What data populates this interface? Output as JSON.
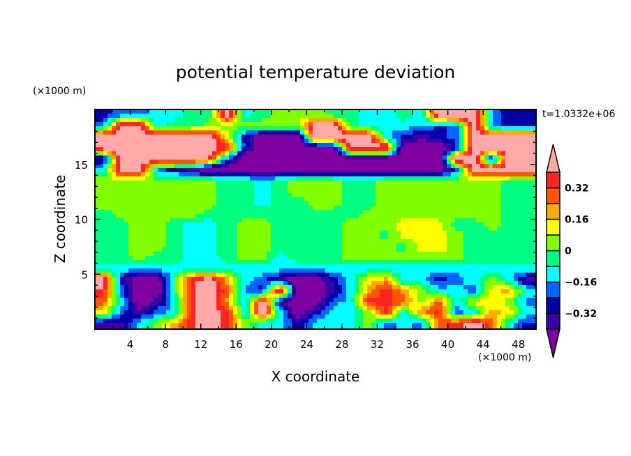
{
  "chart_data": {
    "type": "heatmap",
    "title": "potential temperature deviation",
    "xlabel": "X coordinate",
    "ylabel": "Z coordinate",
    "x_units": "(×1000 m)",
    "y_units": "(×1000 m)",
    "time_label": "t=1.0332e+06",
    "xlim": [
      0,
      50
    ],
    "ylim": [
      0,
      20
    ],
    "x_ticks": [
      4,
      8,
      12,
      16,
      20,
      24,
      28,
      32,
      36,
      40,
      44,
      48
    ],
    "y_ticks": [
      5,
      10,
      15
    ],
    "colorbar": {
      "levels": [
        -0.4,
        -0.32,
        -0.24,
        -0.16,
        -0.08,
        0,
        0.08,
        0.16,
        0.24,
        0.32,
        0.4
      ],
      "colors": [
        "#7f00a0",
        "#3b00a6",
        "#0000a8",
        "#0064ff",
        "#00ffff",
        "#00ff80",
        "#80ff00",
        "#ffff00",
        "#ffa800",
        "#ff5400",
        "#ff2424",
        "#ffa8a8"
      ],
      "tick_labels": [
        {
          "value": 0.32,
          "label": "0.32"
        },
        {
          "value": 0.16,
          "label": "0.16"
        },
        {
          "value": 0,
          "label": "0"
        },
        {
          "value": -0.16,
          "label": "−0.16"
        },
        {
          "value": -0.32,
          "label": "−0.32"
        }
      ],
      "extend": "both"
    },
    "grid_codes": {
      "U": -0.5,
      "I": -0.36,
      "D": -0.28,
      "B": -0.2,
      "C": -0.12,
      "S": -0.04,
      "G": 0.04,
      "Y": 0.12,
      "A": 0.2,
      "O": 0.28,
      "R": 0.36,
      "P": 0.5
    },
    "grid_x_centers": [
      1,
      3,
      5,
      7,
      9,
      11,
      13,
      15,
      17,
      19,
      21,
      23,
      25,
      27,
      29,
      31,
      33,
      35,
      37,
      39,
      41,
      43,
      45,
      47,
      49
    ],
    "grid_z_top_to_bottom": [
      19.5,
      18.5,
      17.5,
      16.5,
      15.5,
      14.5,
      13.5,
      12.5,
      11.5,
      10.5,
      9.5,
      8.5,
      7.5,
      6.5,
      5.5,
      4.5,
      3.5,
      2.5,
      1.5,
      0.5
    ],
    "grid_rows": [
      "DBBCCSSPCSGGGSSCCSCPPPBDD",
      "BPPCSSGGGGGGPPSCCCCDBPBDD",
      "PPPPPPPYDUUUPPPPCDIDBPPPP",
      "PPPPPPPRDUUUUUPPPUUUDPPPP",
      "IPPPPPRBUUUUUUUUUUUUPPIPP",
      "CPPBDIUUUUUUUUUUUUUUBPPPP",
      "GGGGGGGSSCSGGGSSGGGGGGGSS",
      "GGGGGGGSSCSGGGSSGGGGGGGSS",
      "GGGGGGGSSCSSGGSSGGGGGGGSS",
      "SGGGGGSSSSSSSSSGGGGGGGGSS",
      "SSGGSCCSGGSSSSGGGYYYSSGSS",
      "SSGGSCCSGGSSSSGGSYYYGSSSS",
      "SSGGSCCSGGSSSSGGGSYYGSSSS",
      "SSGSSCCSGGCSSSGGGGGGGSSSS",
      "CCCCCCCCCCCCCCCCCCCCCCCCC",
      "PDUUSRPACBIUUDCYACCDBCGCI",
      "RBUUSRPOBDPUUICARAGCCBYAC",
      "OCUICRPACPIUUBCRROGOCYYGB",
      "YBIBCRPRCPCUDCCGRCARBCAYC",
      "IICGARPRGCCDCCCGBCBORPOCD"
    ]
  }
}
